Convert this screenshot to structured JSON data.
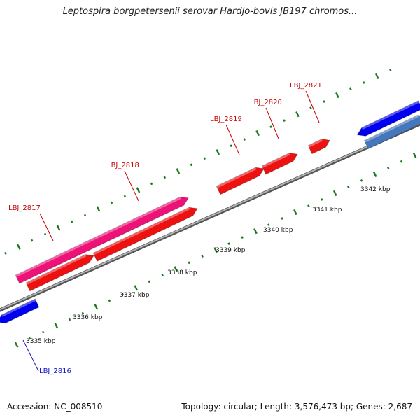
{
  "title": "Leptospira borgpetersenii serovar Hardjo-bovis JB197 chromos...",
  "footer": {
    "accession": "Accession: NC_008510",
    "summary": "Topology: circular; Length: 3,576,473 bp; Genes: 2,687"
  },
  "scale": {
    "unit": "kbp",
    "ticks": [
      {
        "label": "3335 kbp",
        "value": 3335
      },
      {
        "label": "3336 kbp",
        "value": 3336
      },
      {
        "label": "3337 kbp",
        "value": 3337
      },
      {
        "label": "3338 kbp",
        "value": 3338
      },
      {
        "label": "3339 kbp",
        "value": 3339
      },
      {
        "label": "3340 kbp",
        "value": 3340
      },
      {
        "label": "3341 kbp",
        "value": 3341
      },
      {
        "label": "3342 kbp",
        "value": 3342
      }
    ]
  },
  "genes": [
    {
      "id": "LBJ_2816",
      "strand": "reverse",
      "color": "#0000ee",
      "label_color": "#1111cc"
    },
    {
      "id": "LBJ_2817",
      "strand": "forward",
      "color": "#ee1177",
      "label_color": "#cc0000"
    },
    {
      "id": "LBJ_2818",
      "strand": "forward",
      "color": "#ee1111",
      "label_color": "#cc0000"
    },
    {
      "id": "LBJ_2819",
      "strand": "forward",
      "color": "#ee1111",
      "label_color": "#cc0000"
    },
    {
      "id": "LBJ_2820",
      "strand": "forward",
      "color": "#ee1111",
      "label_color": "#cc0000"
    },
    {
      "id": "LBJ_2821",
      "strand": "forward",
      "color": "#ee1111",
      "label_color": "#cc0000"
    }
  ],
  "colors": {
    "backbone": "#8a8a8a",
    "tick": "#1a7a1a",
    "forward_gene": "#ee1111",
    "pink_gene": "#ee1177",
    "reverse_gene": "#0000ee",
    "reverse_gene_alt": "#4477bb"
  }
}
